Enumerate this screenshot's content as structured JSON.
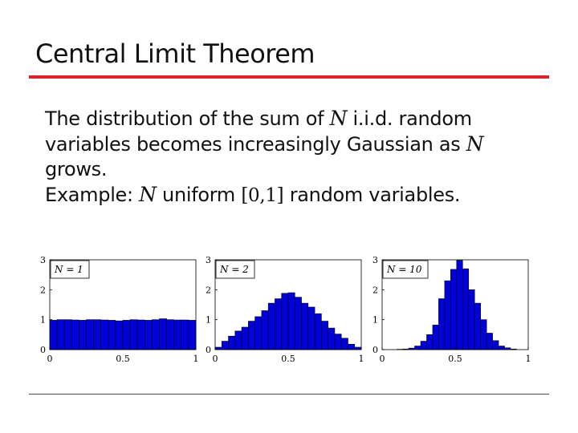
{
  "slide": {
    "title": "Central Limit Theorem",
    "body": {
      "line1_pre": "The distribution of the sum of ",
      "line1_var": "N",
      "line1_post": " i.i.d. random",
      "line2_pre": "variables becomes increasingly Gaussian as ",
      "line2_var": "N",
      "line3": "grows.",
      "line4_pre": "Example: ",
      "line4_var": "N",
      "line4_mid": " uniform ",
      "line4_interval": "[0,1]",
      "line4_post": " random variables."
    },
    "colors": {
      "accent_rule": "#d9262c",
      "bar_fill": "#0000d8"
    }
  },
  "chart_data": [
    {
      "type": "bar",
      "annotation": "N = 1",
      "xlim": [
        0,
        1
      ],
      "ylim": [
        0,
        3
      ],
      "xticks": [
        "0",
        "0.5",
        "1"
      ],
      "yticks": [
        "0",
        "1",
        "2",
        "3"
      ],
      "bin_range": [
        0,
        1
      ],
      "values": [
        0.98,
        1.0,
        1.0,
        0.99,
        0.98,
        1.0,
        1.0,
        0.99,
        0.98,
        0.96,
        0.98,
        1.0,
        0.99,
        0.98,
        1.0,
        1.03,
        1.0,
        0.99,
        0.99,
        0.98
      ]
    },
    {
      "type": "bar",
      "annotation": "N = 2",
      "xlim": [
        0,
        1
      ],
      "ylim": [
        0,
        3
      ],
      "xticks": [
        "0",
        "0.5",
        "1"
      ],
      "yticks": [
        "0",
        "1",
        "2",
        "3"
      ],
      "bin_range": [
        0,
        1
      ],
      "values": [
        0.08,
        0.28,
        0.45,
        0.62,
        0.75,
        0.95,
        1.1,
        1.3,
        1.55,
        1.7,
        1.88,
        1.9,
        1.75,
        1.55,
        1.42,
        1.2,
        0.95,
        0.72,
        0.52,
        0.38,
        0.18,
        0.08
      ]
    },
    {
      "type": "bar",
      "annotation": "N = 10",
      "xlim": [
        0,
        1
      ],
      "ylim": [
        0,
        3
      ],
      "xticks": [
        "0",
        "0.5",
        "1"
      ],
      "yticks": [
        "0",
        "1",
        "2",
        "3"
      ],
      "bin_range": [
        0.1,
        0.92
      ],
      "values": [
        0.01,
        0.02,
        0.05,
        0.12,
        0.28,
        0.5,
        0.82,
        1.7,
        2.3,
        2.68,
        2.98,
        2.7,
        2.0,
        1.55,
        1.0,
        0.55,
        0.3,
        0.12,
        0.06,
        0.02
      ]
    }
  ]
}
